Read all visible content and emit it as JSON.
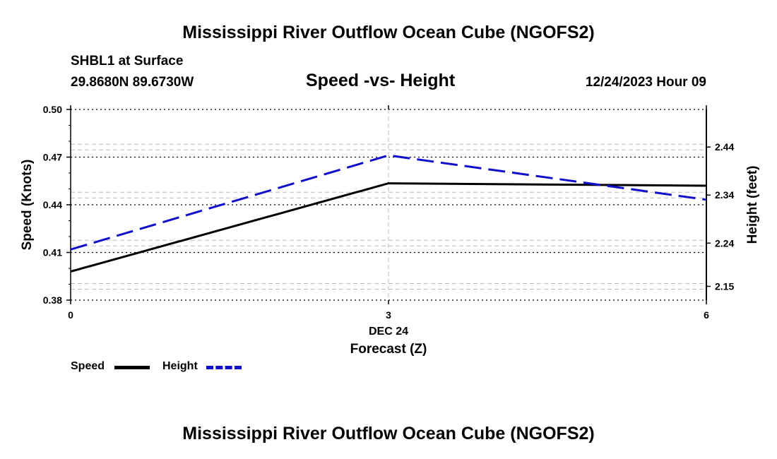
{
  "header": {
    "main_title": "Mississippi River Outflow Ocean Cube (NGOFS2)",
    "station": "SHBL1 at Surface",
    "coords": "29.8680N  89.6730W",
    "chart_title": "Speed -vs- Height",
    "date": "12/24/2023 Hour 09"
  },
  "footer": {
    "main_title": "Mississippi River Outflow Ocean Cube (NGOFS2)"
  },
  "legend": {
    "speed_label": "Speed",
    "height_label": "Height"
  },
  "chart_data": {
    "type": "line",
    "x": [
      0,
      3,
      6
    ],
    "x_tick_labels": [
      "0",
      "3",
      "6"
    ],
    "x_date_label": "DEC 24",
    "xlabel": "Forecast (Z)",
    "xlim": [
      0,
      6
    ],
    "ylabel_left": "Speed (Knots)",
    "ylabel_right": "Height (feet)",
    "y_left_lim": [
      0.38,
      0.5
    ],
    "y_left_ticks": [
      0.38,
      0.41,
      0.44,
      0.47,
      0.5
    ],
    "y_left_tick_labels": [
      "0.38",
      "0.41",
      "0.44",
      "0.47",
      "0.50"
    ],
    "y_right_lim": [
      2.1213,
      2.5182
    ],
    "y_right_ticks": [
      2.15,
      2.24,
      2.34,
      2.44
    ],
    "y_right_tick_labels": [
      "2.15",
      "2.24",
      "2.34",
      "2.44"
    ],
    "series": [
      {
        "name": "Speed",
        "axis": "left",
        "color": "#000000",
        "dash": "solid",
        "values": [
          0.398,
          0.4535,
          0.452
        ]
      },
      {
        "name": "Height",
        "axis": "right",
        "color": "#1010cc",
        "dash": "dashed",
        "values": [
          2.2267,
          2.4227,
          2.3304
        ]
      }
    ]
  }
}
